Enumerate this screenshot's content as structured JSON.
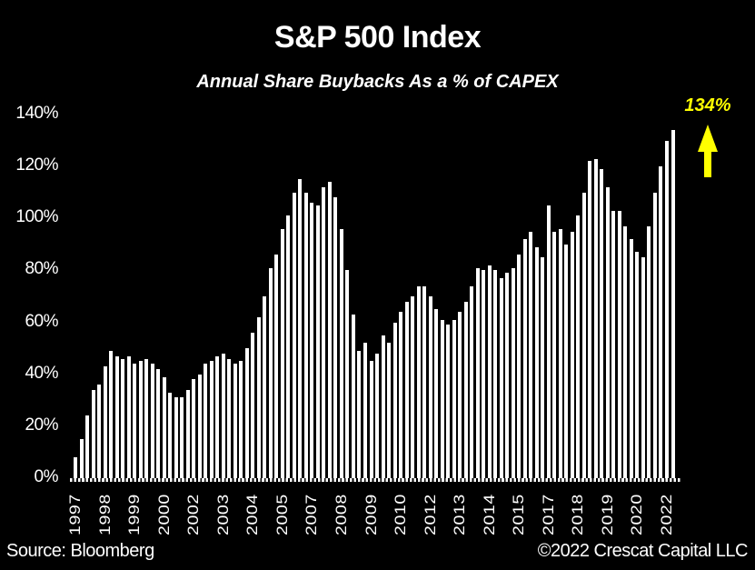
{
  "header": {
    "title": "S&P 500 Index",
    "subtitle": "Annual Share Buybacks As a % of CAPEX"
  },
  "footer": {
    "source": "Source: Bloomberg",
    "copyright": "©2022 Crescat Capital LLC"
  },
  "annotation": {
    "label": "134%",
    "arrow_icon": "up-arrow"
  },
  "colors": {
    "background": "#000000",
    "bar": "#FFFFFF",
    "text": "#FFFFFF",
    "accent": "#FFFF00"
  },
  "chart_data": {
    "type": "bar",
    "title": "S&P 500 Index",
    "subtitle": "Annual Share Buybacks As a % of CAPEX",
    "xlabel": "",
    "ylabel": "",
    "frequency": "quarterly",
    "start_period": "1997-Q1",
    "end_period": "2022-Q2",
    "categories": [
      "1997Q1",
      "1997Q2",
      "1997Q3",
      "1997Q4",
      "1998Q1",
      "1998Q2",
      "1998Q3",
      "1998Q4",
      "1999Q1",
      "1999Q2",
      "1999Q3",
      "1999Q4",
      "2000Q1",
      "2000Q2",
      "2000Q3",
      "2000Q4",
      "2001Q1",
      "2001Q2",
      "2001Q3",
      "2001Q4",
      "2002Q1",
      "2002Q2",
      "2002Q3",
      "2002Q4",
      "2003Q1",
      "2003Q2",
      "2003Q3",
      "2003Q4",
      "2004Q1",
      "2004Q2",
      "2004Q3",
      "2004Q4",
      "2005Q1",
      "2005Q2",
      "2005Q3",
      "2005Q4",
      "2006Q1",
      "2006Q2",
      "2006Q3",
      "2006Q4",
      "2007Q1",
      "2007Q2",
      "2007Q3",
      "2007Q4",
      "2008Q1",
      "2008Q2",
      "2008Q3",
      "2008Q4",
      "2009Q1",
      "2009Q2",
      "2009Q3",
      "2009Q4",
      "2010Q1",
      "2010Q2",
      "2010Q3",
      "2010Q4",
      "2011Q1",
      "2011Q2",
      "2011Q3",
      "2011Q4",
      "2012Q1",
      "2012Q2",
      "2012Q3",
      "2012Q4",
      "2013Q1",
      "2013Q2",
      "2013Q3",
      "2013Q4",
      "2014Q1",
      "2014Q2",
      "2014Q3",
      "2014Q4",
      "2015Q1",
      "2015Q2",
      "2015Q3",
      "2015Q4",
      "2016Q1",
      "2016Q2",
      "2016Q3",
      "2016Q4",
      "2017Q1",
      "2017Q2",
      "2017Q3",
      "2017Q4",
      "2018Q1",
      "2018Q2",
      "2018Q3",
      "2018Q4",
      "2019Q1",
      "2019Q2",
      "2019Q3",
      "2019Q4",
      "2020Q1",
      "2020Q2",
      "2020Q3",
      "2020Q4",
      "2021Q1",
      "2021Q2",
      "2021Q3",
      "2021Q4",
      "2022Q1",
      "2022Q2"
    ],
    "values": [
      8,
      15,
      24,
      34,
      36,
      43,
      49,
      47,
      46,
      47,
      44,
      45,
      46,
      44,
      42,
      39,
      33,
      31,
      31,
      34,
      38,
      40,
      44,
      45,
      47,
      48,
      46,
      44,
      45,
      50,
      56,
      62,
      70,
      81,
      86,
      96,
      101,
      110,
      115,
      110,
      106,
      105,
      112,
      114,
      108,
      96,
      80,
      63,
      49,
      52,
      45,
      48,
      55,
      52,
      60,
      64,
      68,
      70,
      74,
      74,
      70,
      65,
      61,
      59,
      61,
      64,
      68,
      74,
      81,
      80,
      82,
      80,
      77,
      79,
      81,
      86,
      92,
      95,
      89,
      85,
      105,
      95,
      96,
      90,
      95,
      101,
      110,
      122,
      123,
      119,
      112,
      103,
      103,
      97,
      92,
      87,
      85,
      97,
      110,
      120,
      130,
      134
    ],
    "x_tick_labels": [
      "1997",
      "1998",
      "1999",
      "2000",
      "2002",
      "2003",
      "2004",
      "2005",
      "2007",
      "2008",
      "2009",
      "2010",
      "2012",
      "2013",
      "2014",
      "2015",
      "2017",
      "2018",
      "2019",
      "2020",
      "2022"
    ],
    "x_tick_every_n_bars": 5,
    "y_tick_labels": [
      "0%",
      "20%",
      "40%",
      "60%",
      "80%",
      "100%",
      "120%",
      "140%"
    ],
    "ylim": [
      0,
      140
    ],
    "grid": "off",
    "legend": "none",
    "annotation": {
      "text": "134%",
      "applies_to": "2022Q2"
    }
  }
}
